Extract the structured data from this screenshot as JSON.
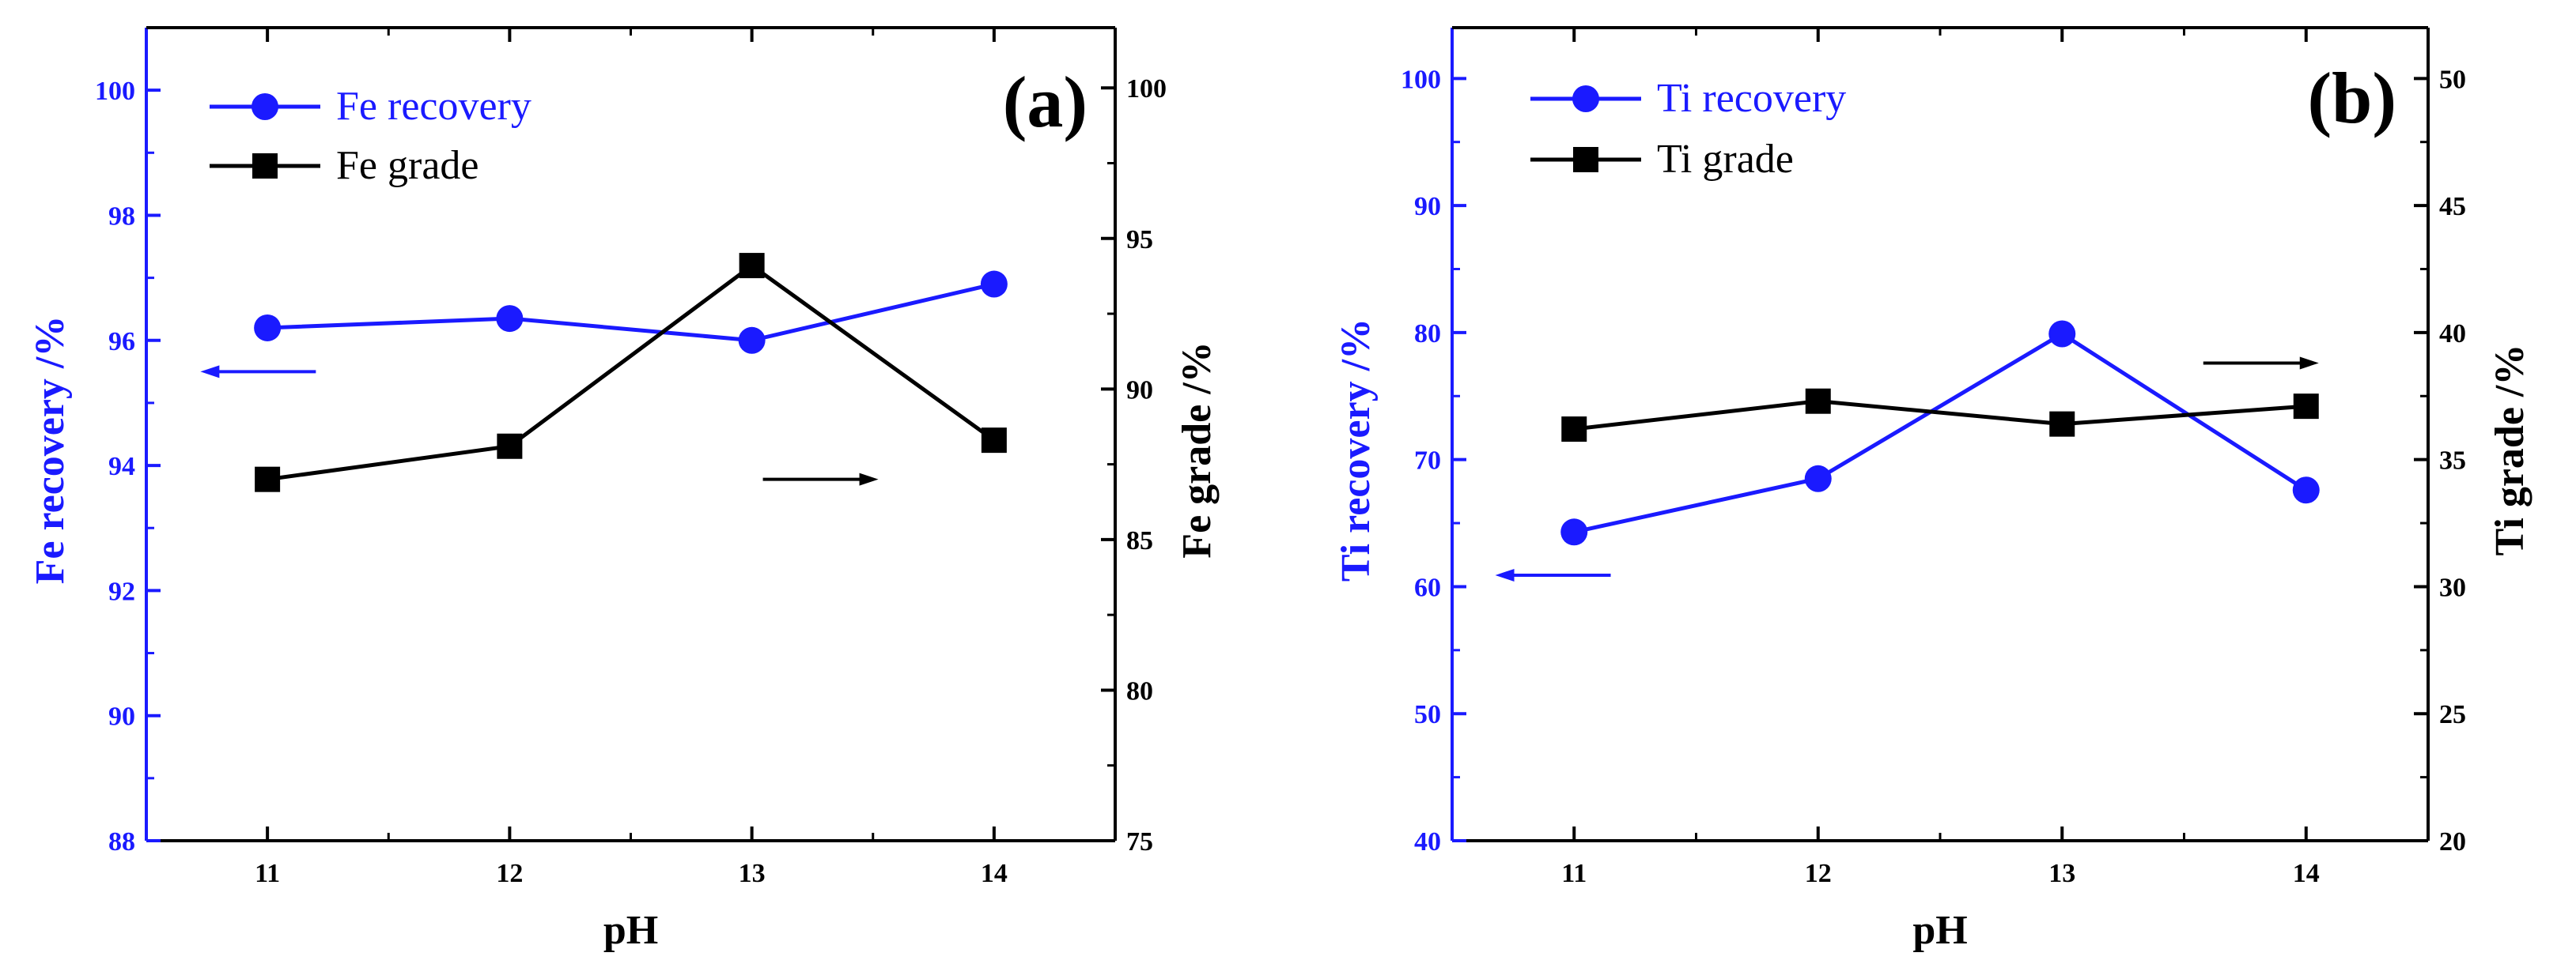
{
  "chart_data": [
    {
      "type": "line",
      "panel_label": "(a)",
      "categories": [
        "11",
        "12",
        "13",
        "14"
      ],
      "x": [
        11,
        12,
        13,
        14
      ],
      "xlabel": "pH",
      "y_left": {
        "label": "Fe recovery /%",
        "ylim": [
          88,
          101
        ],
        "ticks": [
          88,
          90,
          92,
          94,
          96,
          98,
          100
        ],
        "color": "#1a1aff"
      },
      "y_right": {
        "label": "Fe grade /%",
        "ylim": [
          75,
          102
        ],
        "ticks": [
          75,
          80,
          85,
          90,
          95,
          100
        ],
        "color": "#000000"
      },
      "series": [
        {
          "name": "Fe recovery",
          "axis": "left",
          "marker": "circle",
          "color": "#1a1aff",
          "values": [
            96.2,
            96.35,
            96.0,
            96.9
          ]
        },
        {
          "name": "Fe grade",
          "axis": "right",
          "marker": "square",
          "color": "#000000",
          "values": [
            87.0,
            88.1,
            94.1,
            88.3
          ]
        }
      ],
      "legend_position": "top-left",
      "arrows": [
        {
          "points_to": "left",
          "color": "#1a1aff",
          "x": 11.2,
          "y": 95.5,
          "axis": "left"
        },
        {
          "points_to": "right",
          "color": "#000000",
          "x": 13.47,
          "y": 87.0,
          "axis": "right"
        }
      ]
    },
    {
      "type": "line",
      "panel_label": "(b)",
      "categories": [
        "11",
        "12",
        "13",
        "14"
      ],
      "x": [
        11,
        12,
        13,
        14
      ],
      "xlabel": "pH",
      "y_left": {
        "label": "Ti recovery /%",
        "ylim": [
          40,
          104
        ],
        "ticks": [
          40,
          50,
          60,
          70,
          80,
          90,
          100
        ],
        "color": "#1a1aff"
      },
      "y_right": {
        "label": "Ti grade /%",
        "ylim": [
          20,
          52
        ],
        "ticks": [
          20,
          25,
          30,
          35,
          40,
          45,
          50
        ],
        "color": "#000000"
      },
      "series": [
        {
          "name": "Ti recovery",
          "axis": "left",
          "marker": "circle",
          "color": "#1a1aff",
          "values": [
            64.3,
            68.5,
            79.9,
            67.6
          ]
        },
        {
          "name": "Ti grade",
          "axis": "right",
          "marker": "square",
          "color": "#000000",
          "values": [
            36.2,
            37.3,
            36.4,
            37.1
          ]
        }
      ],
      "legend_position": "top-left",
      "arrows": [
        {
          "points_to": "left",
          "color": "#1a1aff",
          "x": 11.15,
          "y": 60.9,
          "axis": "left"
        },
        {
          "points_to": "right",
          "color": "#000000",
          "x": 14.0,
          "y": 38.8,
          "axis": "right"
        }
      ]
    }
  ]
}
